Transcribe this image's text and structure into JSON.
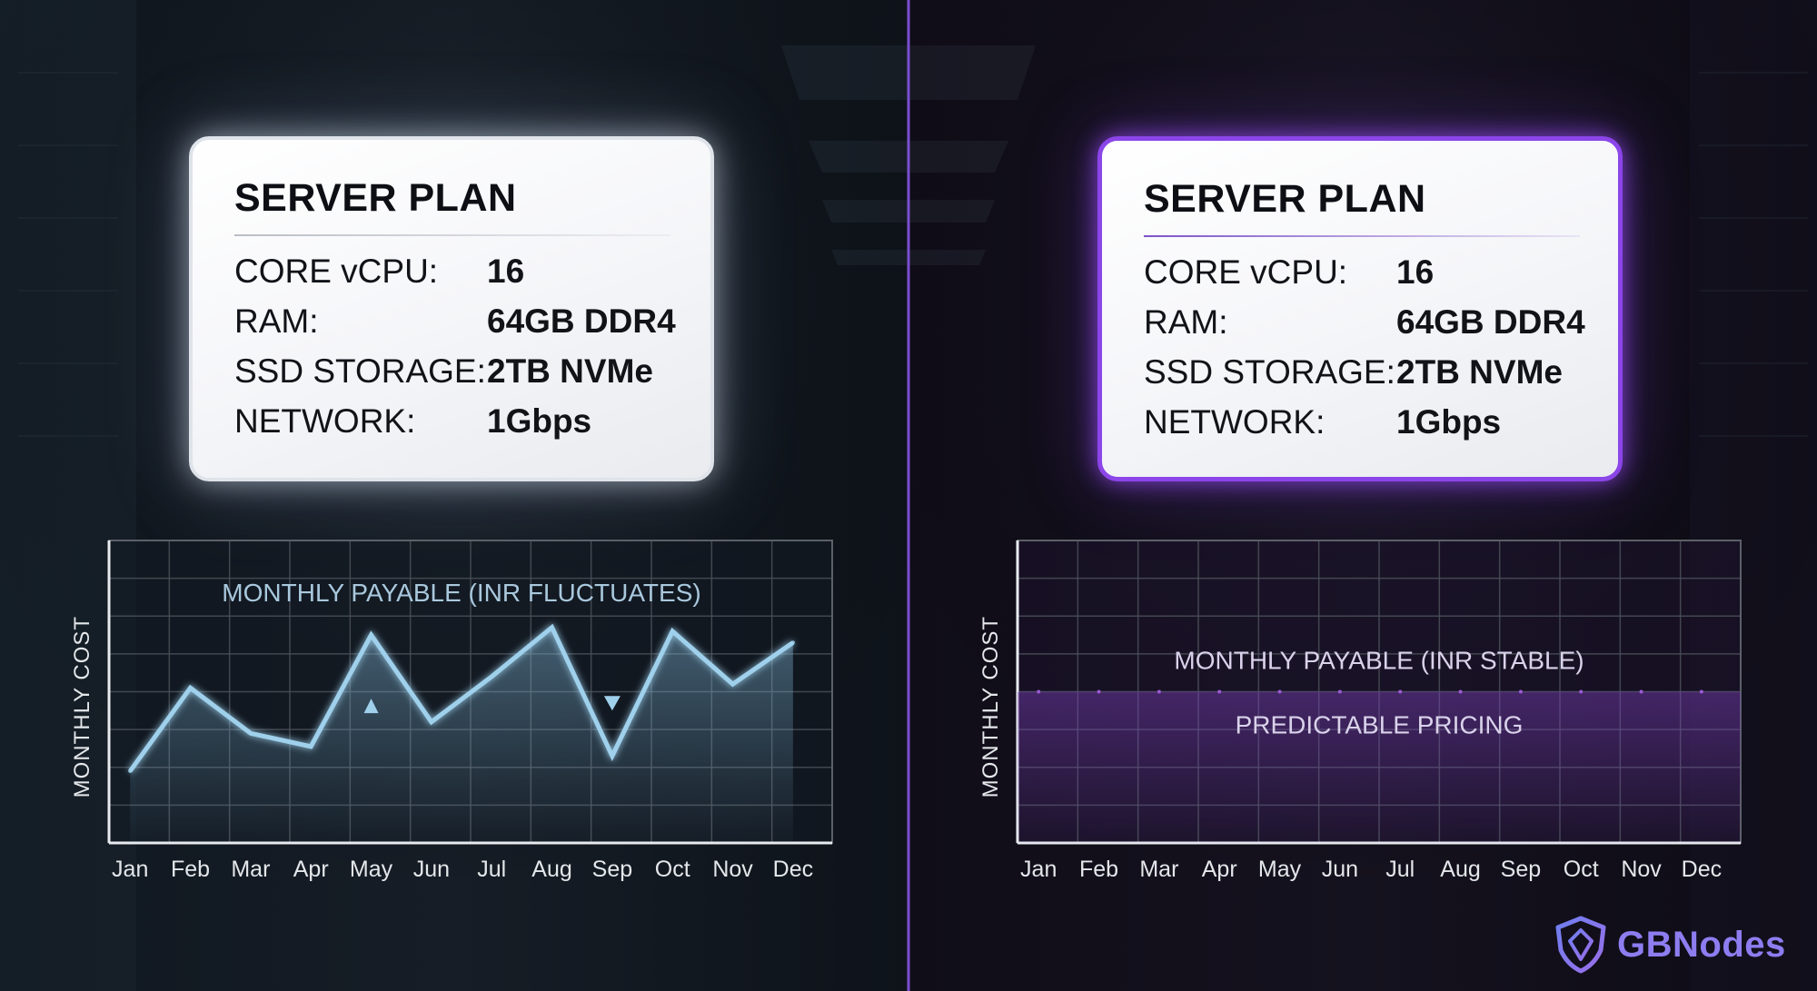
{
  "plans": [
    {
      "title": "SERVER PLAN",
      "specs": [
        {
          "label": "CORE vCPU:",
          "value": "16"
        },
        {
          "label": "RAM:",
          "value": "64GB DDR4"
        },
        {
          "label": "SSD STORAGE:",
          "value": "2TB NVMe"
        },
        {
          "label": "NETWORK:",
          "value": "1Gbps"
        }
      ]
    },
    {
      "title": "SERVER PLAN",
      "specs": [
        {
          "label": "CORE vCPU:",
          "value": "16"
        },
        {
          "label": "RAM:",
          "value": "64GB DDR4"
        },
        {
          "label": "SSD STORAGE:",
          "value": "2TB NVMe"
        },
        {
          "label": "NETWORK:",
          "value": "1Gbps"
        }
      ]
    }
  ],
  "chart_data": [
    {
      "type": "area",
      "title": "MONTHLY PAYABLE (INR FLUCTUATES)",
      "xlabel": "",
      "ylabel": "MONTHLY COST",
      "categories": [
        "Jan",
        "Feb",
        "Mar",
        "Apr",
        "May",
        "Jun",
        "Jul",
        "Aug",
        "Sep",
        "Oct",
        "Nov",
        "Dec"
      ],
      "values": [
        1.9,
        4.1,
        2.9,
        2.55,
        5.5,
        3.2,
        4.4,
        5.7,
        2.3,
        5.6,
        4.2,
        5.3
      ],
      "ylim": [
        0,
        8
      ],
      "grid": true,
      "annotations": [
        {
          "type": "up-arrow",
          "category": "May"
        },
        {
          "type": "down-arrow",
          "category": "Sep"
        }
      ],
      "color": "#9fd0ec"
    },
    {
      "type": "line",
      "title": "MONTHLY PAYABLE (INR STABLE)",
      "subtitle": "PREDICTABLE PRICING",
      "xlabel": "",
      "ylabel": "MONTHLY COST",
      "categories": [
        "Jan",
        "Feb",
        "Mar",
        "Apr",
        "May",
        "Jun",
        "Jul",
        "Aug",
        "Sep",
        "Oct",
        "Nov",
        "Dec"
      ],
      "values": [
        4,
        4,
        4,
        4,
        4,
        4,
        4,
        4,
        4,
        4,
        4,
        4
      ],
      "ylim": [
        0,
        8
      ],
      "grid": true,
      "color": "#a45ee0"
    }
  ],
  "brand": {
    "name": "GBNodes",
    "color": "#8d7df0",
    "icon": "shield-logo-icon"
  },
  "colors": {
    "accent": "#8b45e8",
    "background": "#0c1016"
  }
}
